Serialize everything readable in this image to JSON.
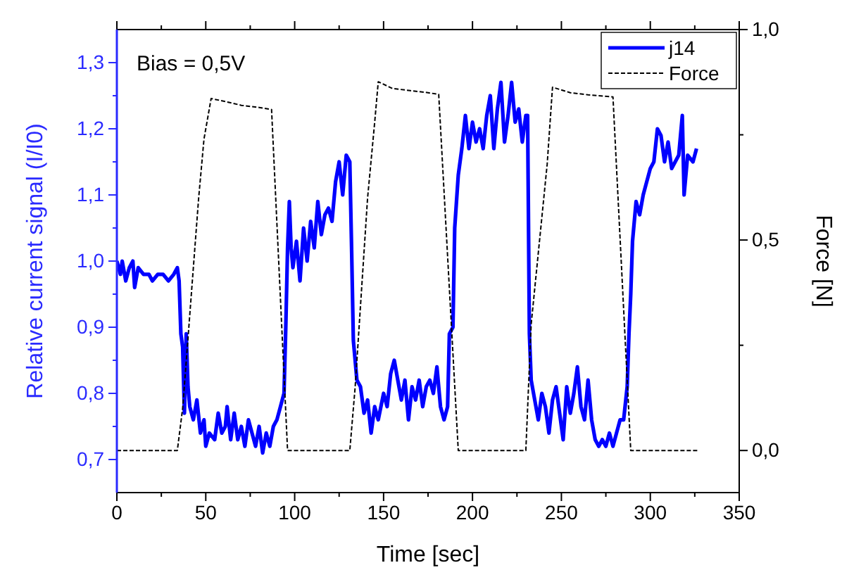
{
  "chart_data": {
    "type": "line",
    "xlabel": "Time [sec]",
    "ylabel": "Relative current signal (I/I0)",
    "y2label": "Force [N]",
    "annotations": [
      "Bias = 0,5V"
    ],
    "xlim": [
      0,
      350
    ],
    "ylim": [
      0.65,
      1.35
    ],
    "y2lim": [
      -0.1,
      1.0
    ],
    "xticks": [
      0,
      {
        "value": 25,
        "label": null
      },
      50,
      {
        "value": 75,
        "label": null
      },
      100,
      {
        "value": 125,
        "label": null
      },
      150,
      {
        "value": 175,
        "label": null
      },
      200,
      {
        "value": 225,
        "label": null
      },
      250,
      {
        "value": 275,
        "label": null
      },
      300,
      {
        "value": 325,
        "label": null
      },
      350
    ],
    "yticks": [
      {
        "value": 0.7,
        "label": "0,7"
      },
      {
        "value": 0.75,
        "label": null
      },
      {
        "value": 0.8,
        "label": "0,8"
      },
      {
        "value": 0.85,
        "label": null
      },
      {
        "value": 0.9,
        "label": "0,9"
      },
      {
        "value": 0.95,
        "label": null
      },
      {
        "value": 1.0,
        "label": "1,0"
      },
      {
        "value": 1.05,
        "label": null
      },
      {
        "value": 1.1,
        "label": "1,1"
      },
      {
        "value": 1.15,
        "label": null
      },
      {
        "value": 1.2,
        "label": "1,2"
      },
      {
        "value": 1.25,
        "label": null
      },
      {
        "value": 1.3,
        "label": "1,3"
      }
    ],
    "y2ticks": [
      {
        "value": 0.0,
        "label": "0,0"
      },
      {
        "value": 0.25,
        "label": null
      },
      {
        "value": 0.5,
        "label": "0,5"
      },
      {
        "value": 0.75,
        "label": null
      },
      {
        "value": 1.0,
        "label": "1,0"
      }
    ],
    "grid": false,
    "legend": "top right",
    "series": [
      {
        "name": "j14",
        "color": "#0000ff",
        "line_style": "solid",
        "x": [
          0,
          2,
          3,
          5,
          7,
          9,
          10,
          12,
          15,
          18,
          20,
          23,
          26,
          29,
          32,
          34,
          35,
          36,
          37,
          38,
          39,
          40,
          41,
          43,
          45,
          47,
          49,
          50,
          52,
          55,
          57,
          59,
          61,
          62,
          64,
          66,
          68,
          70,
          72,
          74,
          76,
          78,
          80,
          82,
          84,
          86,
          88,
          90,
          92,
          94,
          95,
          96,
          97,
          98,
          99,
          101,
          103,
          105,
          107,
          109,
          111,
          113,
          115,
          117,
          119,
          121,
          123,
          125,
          127,
          129,
          131,
          132,
          133,
          135,
          137,
          139,
          141,
          143,
          145,
          147,
          150,
          152,
          154,
          156,
          158,
          160,
          162,
          164,
          166,
          168,
          170,
          172,
          174,
          176,
          178,
          180,
          182,
          184,
          186,
          187,
          189,
          190,
          192,
          194,
          196,
          198,
          200,
          202,
          204,
          206,
          208,
          210,
          212,
          214,
          216,
          218,
          220,
          222,
          224,
          226,
          228,
          230,
          231,
          232,
          233,
          235,
          237,
          239,
          241,
          243,
          245,
          247,
          249,
          251,
          253,
          255,
          257,
          259,
          261,
          263,
          265,
          267,
          269,
          271,
          273,
          275,
          277,
          279,
          281,
          283,
          285,
          287,
          288,
          289,
          290,
          292,
          294,
          296,
          298,
          300,
          302,
          304,
          306,
          308,
          310,
          312,
          314,
          316,
          318,
          319,
          321,
          324,
          326
        ],
        "values": [
          1.0,
          0.98,
          1.0,
          0.97,
          0.99,
          1.0,
          0.96,
          0.99,
          0.98,
          0.98,
          0.97,
          0.98,
          0.98,
          0.97,
          0.98,
          0.99,
          0.97,
          0.89,
          0.87,
          0.77,
          0.89,
          0.81,
          0.78,
          0.76,
          0.79,
          0.74,
          0.76,
          0.72,
          0.74,
          0.73,
          0.77,
          0.74,
          0.75,
          0.78,
          0.73,
          0.77,
          0.73,
          0.75,
          0.72,
          0.76,
          0.74,
          0.72,
          0.75,
          0.71,
          0.74,
          0.72,
          0.75,
          0.76,
          0.78,
          0.8,
          0.9,
          1.02,
          1.09,
          1.02,
          0.99,
          1.03,
          0.97,
          1.05,
          1.0,
          1.06,
          1.02,
          1.09,
          1.04,
          1.07,
          1.08,
          1.06,
          1.12,
          1.15,
          1.1,
          1.16,
          1.15,
          1.02,
          0.88,
          0.82,
          0.81,
          0.77,
          0.79,
          0.74,
          0.78,
          0.76,
          0.8,
          0.78,
          0.83,
          0.85,
          0.82,
          0.79,
          0.82,
          0.76,
          0.81,
          0.79,
          0.82,
          0.78,
          0.81,
          0.82,
          0.8,
          0.84,
          0.78,
          0.76,
          0.78,
          0.89,
          0.9,
          1.05,
          1.13,
          1.17,
          1.22,
          1.17,
          1.21,
          1.18,
          1.2,
          1.17,
          1.22,
          1.25,
          1.17,
          1.23,
          1.27,
          1.18,
          1.22,
          1.27,
          1.21,
          1.23,
          1.18,
          1.22,
          1.22,
          0.89,
          0.82,
          0.79,
          0.76,
          0.8,
          0.78,
          0.74,
          0.79,
          0.81,
          0.77,
          0.73,
          0.81,
          0.77,
          0.8,
          0.84,
          0.78,
          0.76,
          0.82,
          0.76,
          0.73,
          0.72,
          0.73,
          0.72,
          0.74,
          0.72,
          0.74,
          0.76,
          0.76,
          0.81,
          0.89,
          0.95,
          1.03,
          1.09,
          1.07,
          1.1,
          1.12,
          1.14,
          1.15,
          1.2,
          1.19,
          1.15,
          1.18,
          1.14,
          1.15,
          1.16,
          1.22,
          1.1,
          1.16,
          1.15,
          1.17
        ]
      },
      {
        "name": "Force",
        "color": "#000000",
        "axis": "y2",
        "line_style": "dashed",
        "x": [
          0,
          34,
          37,
          46,
          49,
          53,
          60,
          70,
          80,
          87,
          96,
          131,
          134,
          141,
          145,
          147,
          155,
          165,
          175,
          181,
          192,
          230,
          233,
          242,
          245,
          255,
          265,
          279,
          289,
          327
        ],
        "values": [
          0,
          0,
          0.1,
          0.6,
          0.74,
          0.836,
          0.83,
          0.82,
          0.815,
          0.81,
          0,
          0,
          0.15,
          0.6,
          0.78,
          0.876,
          0.86,
          0.855,
          0.85,
          0.846,
          0,
          0,
          0.3,
          0.68,
          0.863,
          0.85,
          0.845,
          0.84,
          0,
          0
        ]
      }
    ]
  }
}
